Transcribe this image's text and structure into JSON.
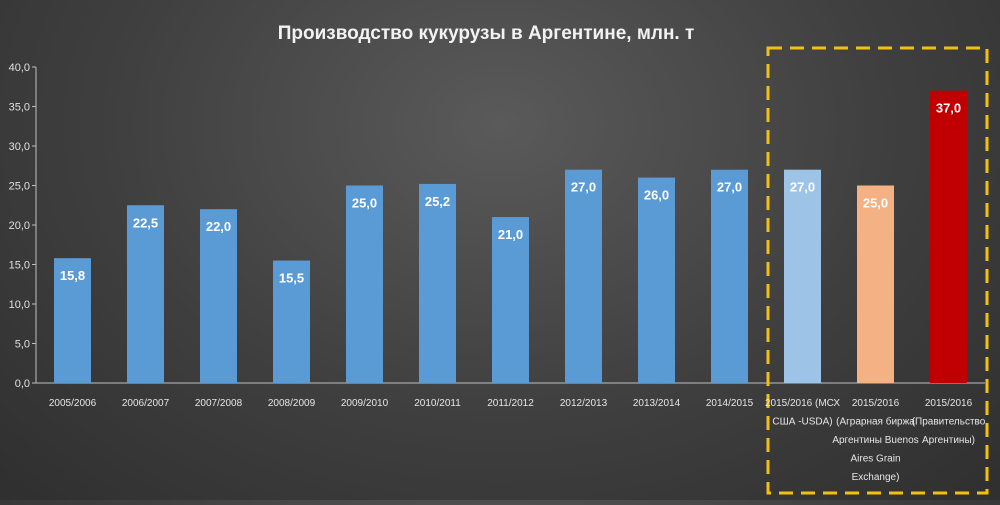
{
  "chart_data": {
    "type": "bar",
    "title": "Производство кукурузы в Аргентине, млн. т",
    "xlabel": "",
    "ylabel": "",
    "ylim": [
      0,
      40
    ],
    "yticks": [
      "0,0",
      "5,0",
      "10,0",
      "15,0",
      "20,0",
      "25,0",
      "30,0",
      "35,0",
      "40,0"
    ],
    "grid": false,
    "legend": "none",
    "categories": [
      "2005/2006",
      "2006/2007",
      "2007/2008",
      "2008/2009",
      "2009/2010",
      "2010/2011",
      "2011/2012",
      "2012/2013",
      "2013/2014",
      "2014/2015",
      "2015/2016 (МСХ США -USDA)",
      "2015/2016 (Аграрная биржа Аргентины Buenos Aires Grain Exchange)",
      "2015/2016 (Правительство Аргентины)"
    ],
    "category_lines": [
      [
        "2005/2006"
      ],
      [
        "2006/2007"
      ],
      [
        "2007/2008"
      ],
      [
        "2008/2009"
      ],
      [
        "2009/2010"
      ],
      [
        "2010/2011"
      ],
      [
        "2011/2012"
      ],
      [
        "2012/2013"
      ],
      [
        "2013/2014"
      ],
      [
        "2014/2015"
      ],
      [
        "2015/2016 (МСХ",
        "США -USDA)"
      ],
      [
        "2015/2016",
        "(Аграрная биржа",
        "Аргентины Buenos",
        "Aires Grain",
        "Exchange)"
      ],
      [
        "2015/2016",
        "(Правительство",
        "Аргентины)"
      ]
    ],
    "values": [
      15.8,
      22.5,
      22.0,
      15.5,
      25.0,
      25.2,
      21.0,
      27.0,
      26.0,
      27.0,
      27.0,
      25.0,
      37.0
    ],
    "data_labels": [
      "15,8",
      "22,5",
      "22,0",
      "15,5",
      "25,0",
      "25,2",
      "21,0",
      "27,0",
      "26,0",
      "27,0",
      "27,0",
      "25,0",
      "37,0"
    ],
    "bar_colors": [
      "#5b9bd5",
      "#5b9bd5",
      "#5b9bd5",
      "#5b9bd5",
      "#5b9bd5",
      "#5b9bd5",
      "#5b9bd5",
      "#5b9bd5",
      "#5b9bd5",
      "#5b9bd5",
      "#9dc3e6",
      "#f4b183",
      "#c00000"
    ],
    "highlight_box_color": "#f2c012",
    "highlight_categories": [
      10,
      11,
      12
    ]
  }
}
